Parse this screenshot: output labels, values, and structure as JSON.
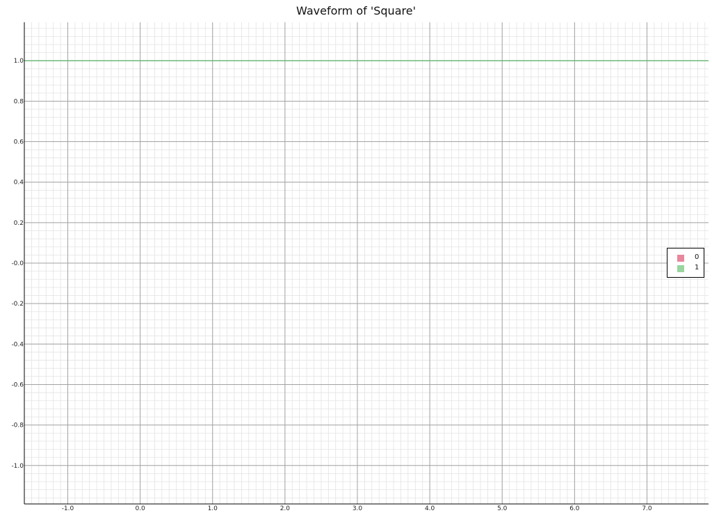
{
  "chart_data": {
    "type": "line",
    "title": "Waveform of 'Square'",
    "xlabel": "",
    "ylabel": "",
    "xlim": [
      -1.6,
      7.85
    ],
    "ylim": [
      -1.19,
      1.19
    ],
    "x_ticks": [
      -1.0,
      0.0,
      1.0,
      2.0,
      3.0,
      4.0,
      5.0,
      6.0,
      7.0
    ],
    "x_tick_labels": [
      "-1.0",
      "0.0",
      "1.0",
      "2.0",
      "3.0",
      "4.0",
      "5.0",
      "6.0",
      "7.0"
    ],
    "y_ticks": [
      1.0,
      0.8,
      0.6,
      0.4,
      0.2,
      0.0,
      -0.2,
      -0.4,
      -0.6,
      -0.8,
      -1.0
    ],
    "y_tick_labels": [
      "1.0",
      "0.8",
      "0.6",
      "0.4",
      "0.2",
      "-0.0",
      "-0.2",
      "-0.4",
      "-0.6",
      "-0.8",
      "-1.0"
    ],
    "grid": true,
    "legend_position": "right",
    "series": [
      {
        "name": "0",
        "color": "#e8879c",
        "x": [],
        "y": []
      },
      {
        "name": "1",
        "color": "#99d59e",
        "line_color": "#5cb56a",
        "x": [
          -1.6,
          7.85
        ],
        "y": [
          1.0,
          1.0
        ]
      }
    ]
  }
}
